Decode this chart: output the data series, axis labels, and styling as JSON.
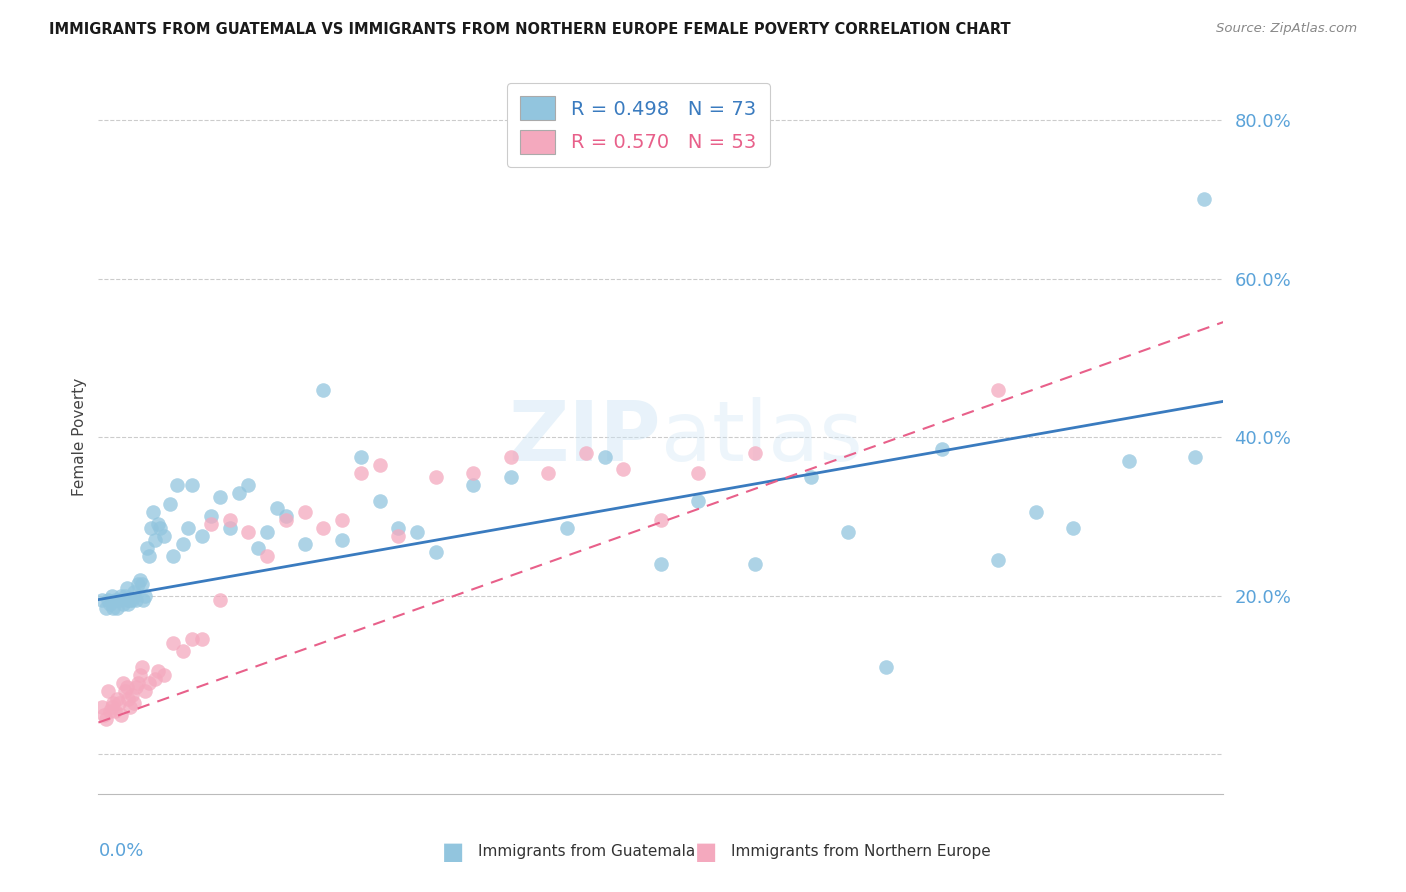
{
  "title": "IMMIGRANTS FROM GUATEMALA VS IMMIGRANTS FROM NORTHERN EUROPE FEMALE POVERTY CORRELATION CHART",
  "source": "Source: ZipAtlas.com",
  "ylabel": "Female Poverty",
  "xlim": [
    0.0,
    0.6
  ],
  "ylim": [
    -0.05,
    0.85
  ],
  "yticks": [
    0.0,
    0.2,
    0.4,
    0.6,
    0.8
  ],
  "ytick_labels": [
    "",
    "20.0%",
    "40.0%",
    "60.0%",
    "80.0%"
  ],
  "legend_r1": "R = 0.498",
  "legend_n1": "N = 73",
  "legend_r2": "R = 0.570",
  "legend_n2": "N = 53",
  "color_blue": "#92c5de",
  "color_pink": "#f4a9be",
  "color_line_blue": "#3a7bbf",
  "color_line_pink": "#e8608a",
  "color_axis_labels": "#5ba3d9",
  "blue_line_start_y": 0.195,
  "blue_line_end_y": 0.445,
  "pink_line_start_y": 0.04,
  "pink_line_end_y": 0.545,
  "guatemala_x": [
    0.002,
    0.004,
    0.005,
    0.006,
    0.007,
    0.008,
    0.009,
    0.01,
    0.011,
    0.012,
    0.013,
    0.014,
    0.015,
    0.015,
    0.016,
    0.017,
    0.018,
    0.019,
    0.02,
    0.021,
    0.022,
    0.023,
    0.024,
    0.025,
    0.026,
    0.027,
    0.028,
    0.029,
    0.03,
    0.032,
    0.033,
    0.035,
    0.038,
    0.04,
    0.042,
    0.045,
    0.048,
    0.05,
    0.055,
    0.06,
    0.065,
    0.07,
    0.075,
    0.08,
    0.085,
    0.09,
    0.095,
    0.1,
    0.11,
    0.12,
    0.13,
    0.14,
    0.15,
    0.16,
    0.17,
    0.18,
    0.2,
    0.22,
    0.25,
    0.27,
    0.3,
    0.32,
    0.35,
    0.38,
    0.4,
    0.42,
    0.45,
    0.48,
    0.5,
    0.52,
    0.55,
    0.585,
    0.59
  ],
  "guatemala_y": [
    0.195,
    0.185,
    0.195,
    0.19,
    0.2,
    0.185,
    0.195,
    0.185,
    0.195,
    0.2,
    0.19,
    0.2,
    0.21,
    0.195,
    0.19,
    0.195,
    0.195,
    0.205,
    0.195,
    0.215,
    0.22,
    0.215,
    0.195,
    0.2,
    0.26,
    0.25,
    0.285,
    0.305,
    0.27,
    0.29,
    0.285,
    0.275,
    0.315,
    0.25,
    0.34,
    0.265,
    0.285,
    0.34,
    0.275,
    0.3,
    0.325,
    0.285,
    0.33,
    0.34,
    0.26,
    0.28,
    0.31,
    0.3,
    0.265,
    0.46,
    0.27,
    0.375,
    0.32,
    0.285,
    0.28,
    0.255,
    0.34,
    0.35,
    0.285,
    0.375,
    0.24,
    0.32,
    0.24,
    0.35,
    0.28,
    0.11,
    0.385,
    0.245,
    0.305,
    0.285,
    0.37,
    0.375,
    0.7
  ],
  "northern_europe_x": [
    0.002,
    0.003,
    0.004,
    0.005,
    0.006,
    0.007,
    0.008,
    0.009,
    0.01,
    0.011,
    0.012,
    0.013,
    0.014,
    0.015,
    0.016,
    0.017,
    0.018,
    0.019,
    0.02,
    0.021,
    0.022,
    0.023,
    0.025,
    0.027,
    0.03,
    0.032,
    0.035,
    0.04,
    0.045,
    0.05,
    0.055,
    0.06,
    0.065,
    0.07,
    0.08,
    0.09,
    0.1,
    0.11,
    0.12,
    0.13,
    0.14,
    0.15,
    0.16,
    0.18,
    0.2,
    0.22,
    0.24,
    0.26,
    0.28,
    0.3,
    0.32,
    0.35,
    0.48
  ],
  "northern_europe_y": [
    0.06,
    0.05,
    0.045,
    0.08,
    0.055,
    0.06,
    0.065,
    0.055,
    0.07,
    0.065,
    0.05,
    0.09,
    0.08,
    0.085,
    0.07,
    0.06,
    0.075,
    0.065,
    0.085,
    0.09,
    0.1,
    0.11,
    0.08,
    0.09,
    0.095,
    0.105,
    0.1,
    0.14,
    0.13,
    0.145,
    0.145,
    0.29,
    0.195,
    0.295,
    0.28,
    0.25,
    0.295,
    0.305,
    0.285,
    0.295,
    0.355,
    0.365,
    0.275,
    0.35,
    0.355,
    0.375,
    0.355,
    0.38,
    0.36,
    0.295,
    0.355,
    0.38,
    0.46
  ]
}
